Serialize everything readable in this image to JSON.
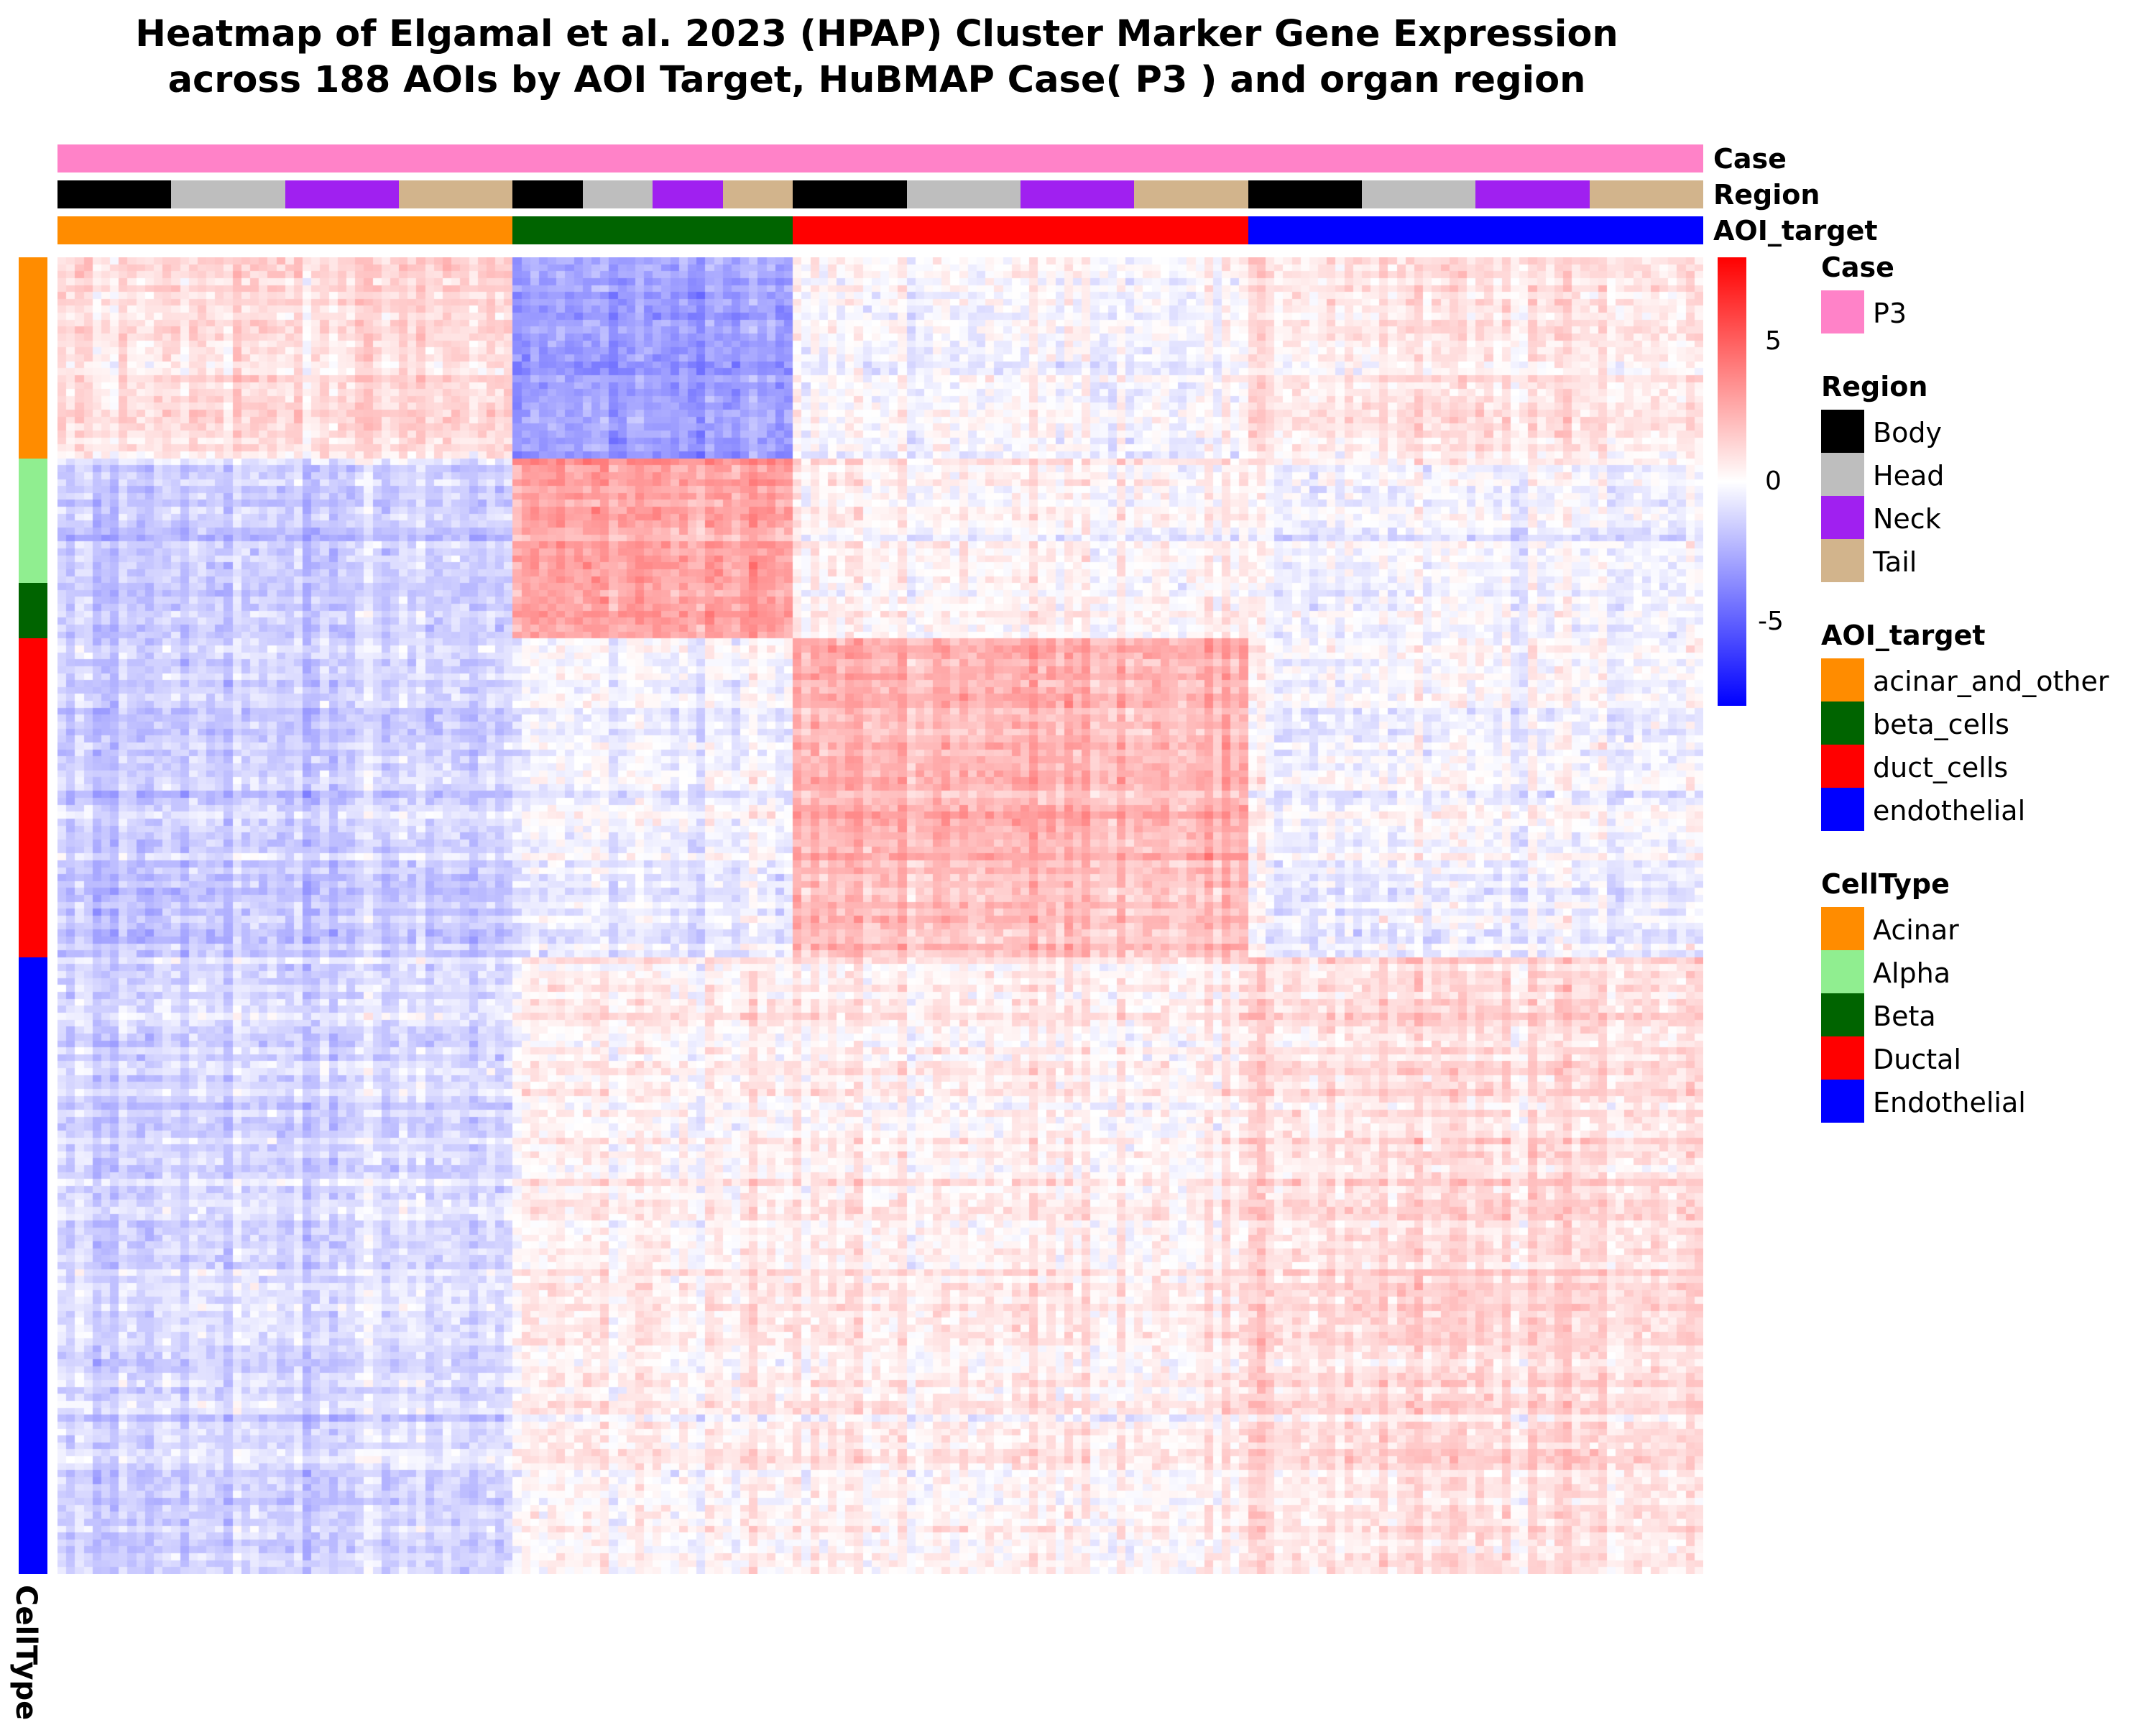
{
  "chart_data": {
    "type": "heatmap",
    "title_line1": "Heatmap of Elgamal et al. 2023 (HPAP) Cluster Marker Gene Expression",
    "title_line2": "across 188 AOIs by AOI Target, HuBMAP Case( P3 ) and organ region",
    "n_columns": 188,
    "column_annotations": {
      "Case": {
        "label": "Case",
        "segments": [
          {
            "value": "P3",
            "count": 188
          }
        ]
      },
      "Region": {
        "label": "Region",
        "segments": [
          {
            "value": "Body",
            "count": 13
          },
          {
            "value": "Head",
            "count": 13
          },
          {
            "value": "Neck",
            "count": 13
          },
          {
            "value": "Tail",
            "count": 13
          },
          {
            "value": "Body",
            "count": 8
          },
          {
            "value": "Head",
            "count": 8
          },
          {
            "value": "Neck",
            "count": 8
          },
          {
            "value": "Tail",
            "count": 8
          },
          {
            "value": "Body",
            "count": 13
          },
          {
            "value": "Head",
            "count": 13
          },
          {
            "value": "Neck",
            "count": 13
          },
          {
            "value": "Tail",
            "count": 13
          },
          {
            "value": "Body",
            "count": 13
          },
          {
            "value": "Head",
            "count": 13
          },
          {
            "value": "Neck",
            "count": 13
          },
          {
            "value": "Tail",
            "count": 13
          }
        ]
      },
      "AOI_target": {
        "label": "AOI_target",
        "segments": [
          {
            "value": "acinar_and_other",
            "count": 52
          },
          {
            "value": "beta_cells",
            "count": 32
          },
          {
            "value": "duct_cells",
            "count": 52
          },
          {
            "value": "endothelial",
            "count": 52
          }
        ]
      }
    },
    "row_annotation": {
      "label": "CellType",
      "segments": [
        {
          "value": "Acinar",
          "rows": 29
        },
        {
          "value": "Alpha",
          "rows": 18
        },
        {
          "value": "Beta",
          "rows": 8
        },
        {
          "value": "Ductal",
          "rows": 46
        },
        {
          "value": "Endothelial",
          "rows": 89
        }
      ]
    },
    "block_mean_expression": {
      "row_groups": [
        "Acinar",
        "Alpha",
        "Beta",
        "Ductal",
        "Endothelial"
      ],
      "column_groups": [
        "acinar_and_other",
        "beta_cells",
        "duct_cells",
        "endothelial"
      ],
      "values": [
        [
          1.1,
          -3.0,
          -0.1,
          0.7
        ],
        [
          -1.5,
          2.9,
          0.3,
          -0.3
        ],
        [
          -1.5,
          2.9,
          0.3,
          -0.3
        ],
        [
          -1.5,
          -0.4,
          2.3,
          -0.3
        ],
        [
          -1.2,
          0.4,
          0.5,
          1.0
        ]
      ]
    },
    "color_scale": {
      "label": "",
      "colors": [
        "#0000ff",
        "#ffffff",
        "#ff0000"
      ],
      "domain": [
        -8,
        0,
        8
      ],
      "ticks": [
        5,
        0,
        -5
      ],
      "tick_labels": [
        "5",
        "0",
        "-5"
      ]
    },
    "legends": [
      {
        "title": "Case",
        "items": [
          {
            "label": "P3",
            "color": "#ff82c8"
          }
        ]
      },
      {
        "title": "Region",
        "items": [
          {
            "label": "Body",
            "color": "#000000"
          },
          {
            "label": "Head",
            "color": "#bebebe"
          },
          {
            "label": "Neck",
            "color": "#a020f0"
          },
          {
            "label": "Tail",
            "color": "#d2b48c"
          }
        ]
      },
      {
        "title": "AOI_target",
        "items": [
          {
            "label": "acinar_and_other",
            "color": "#ff8c00"
          },
          {
            "label": "beta_cells",
            "color": "#006400"
          },
          {
            "label": "duct_cells",
            "color": "#ff0000"
          },
          {
            "label": "endothelial",
            "color": "#0000ff"
          }
        ]
      },
      {
        "title": "CellType",
        "items": [
          {
            "label": "Acinar",
            "color": "#ff8c00"
          },
          {
            "label": "Alpha",
            "color": "#90ee90"
          },
          {
            "label": "Beta",
            "color": "#006400"
          },
          {
            "label": "Ductal",
            "color": "#ff0000"
          },
          {
            "label": "Endothelial",
            "color": "#0000ff"
          }
        ]
      }
    ]
  }
}
